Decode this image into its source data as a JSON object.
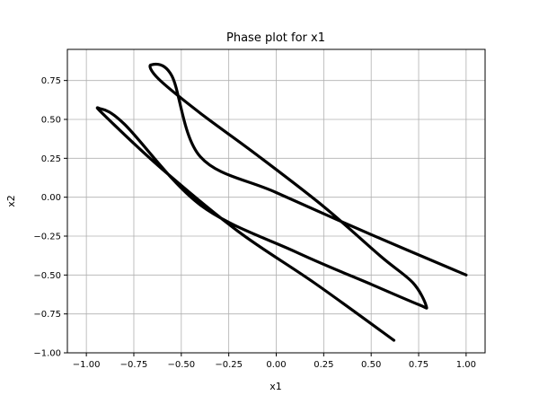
{
  "chart_data": {
    "type": "line",
    "title": "Phase plot for x1",
    "xlabel": "x1",
    "ylabel": "x2",
    "xlim": [
      -1.1,
      1.1
    ],
    "ylim": [
      -1.0,
      0.95
    ],
    "xticks": [
      -1.0,
      -0.75,
      -0.5,
      -0.25,
      0.0,
      0.25,
      0.5,
      0.75,
      1.0
    ],
    "xtick_labels": [
      "−1.00",
      "−0.75",
      "−0.50",
      "−0.25",
      "0.00",
      "0.25",
      "0.50",
      "0.75",
      "1.00"
    ],
    "yticks": [
      -1.0,
      -0.75,
      -0.5,
      -0.25,
      0.0,
      0.25,
      0.5,
      0.75
    ],
    "ytick_labels": [
      "−1.00",
      "−0.75",
      "−0.50",
      "−0.25",
      "0.00",
      "0.25",
      "0.50",
      "0.75"
    ],
    "grid": true,
    "line_color": "#000000",
    "series": [
      {
        "points": [
          [
            1.0,
            -0.5
          ],
          [
            0.5,
            -0.24
          ],
          [
            0.0,
            0.03
          ],
          [
            -0.4,
            0.26
          ],
          [
            -0.55,
            0.78
          ],
          [
            -0.66,
            0.85
          ],
          [
            -0.62,
            0.76
          ],
          [
            -0.4,
            0.54
          ],
          [
            -0.1,
            0.27
          ],
          [
            0.25,
            -0.06
          ],
          [
            0.55,
            -0.38
          ],
          [
            0.72,
            -0.55
          ],
          [
            0.79,
            -0.7
          ],
          [
            0.75,
            -0.69
          ],
          [
            0.5,
            -0.56
          ],
          [
            0.1,
            -0.35
          ],
          [
            -0.4,
            -0.05
          ],
          [
            -0.8,
            0.47
          ],
          [
            -0.93,
            0.57
          ],
          [
            -0.9,
            0.52
          ],
          [
            -0.6,
            0.18
          ],
          [
            -0.2,
            -0.22
          ],
          [
            0.2,
            -0.55
          ],
          [
            0.62,
            -0.92
          ]
        ]
      }
    ]
  }
}
